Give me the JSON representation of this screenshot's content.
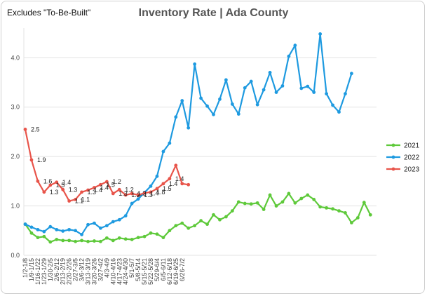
{
  "note": "Excludes \"To-Be-Built\"",
  "chart_data": {
    "type": "line",
    "title": "Inventory Rate | Ada County",
    "xlabel": "",
    "ylabel": "",
    "ylim": [
      0,
      4.6
    ],
    "yticks": [
      "0.0",
      "1.0",
      "2.0",
      "3.0",
      "4.0"
    ],
    "grid": true,
    "legend_position": "right",
    "x_labels": [
      "1/2-1/8",
      "1/9-1/15",
      "1/16-1/22",
      "1/23-1/29",
      "1/30-2/5",
      "2/6-2/12",
      "2/13-2/19",
      "2/20-2/26",
      "2/27-3/5",
      "3/6-3/12",
      "3/13-3/19",
      "3/20-3/26",
      "3/27-4/2",
      "4/3-4/9",
      "4/10-4/16",
      "4/17-4/23",
      "4/24-4/30",
      "5/1-5/7",
      "5/8-5/14",
      "5/15-5/21",
      "5/22-5/28",
      "5/29-6/4",
      "6/5-6/11",
      "6/12-6/18",
      "6/19-6/25",
      "6/26-7/2"
    ],
    "series": [
      {
        "name": "2021",
        "color": "#5ec93a",
        "values": [
          0.63,
          0.45,
          0.36,
          0.38,
          0.27,
          0.32,
          0.3,
          0.3,
          0.28,
          0.3,
          0.28,
          0.29,
          0.28,
          0.35,
          0.3,
          0.35,
          0.33,
          0.32,
          0.36,
          0.38,
          0.45,
          0.43,
          0.36,
          0.5,
          0.6,
          0.65,
          0.55,
          0.6,
          0.7,
          0.63,
          0.82,
          0.72,
          0.78,
          0.9,
          1.08,
          1.05,
          1.04,
          1.06,
          0.93,
          1.22,
          1.0,
          1.08,
          1.25,
          1.06,
          1.15,
          1.22,
          1.13,
          0.98,
          0.96,
          0.94,
          0.9,
          0.86,
          0.66,
          0.76,
          1.07,
          0.82
        ]
      },
      {
        "name": "2022",
        "color": "#1e9ae0",
        "values": [
          0.63,
          0.57,
          0.52,
          0.48,
          0.58,
          0.52,
          0.49,
          0.52,
          0.5,
          0.42,
          0.62,
          0.65,
          0.55,
          0.6,
          0.68,
          0.72,
          0.8,
          1.05,
          1.14,
          1.27,
          1.4,
          1.6,
          2.1,
          2.27,
          2.8,
          3.13,
          2.58,
          3.87,
          3.18,
          3.02,
          2.85,
          3.16,
          3.55,
          3.06,
          2.86,
          3.39,
          3.52,
          3.05,
          3.35,
          3.7,
          3.3,
          3.43,
          4.03,
          4.25,
          3.38,
          3.42,
          3.3,
          4.48,
          3.27,
          3.04,
          2.9,
          3.27,
          3.68
        ]
      },
      {
        "name": "2023",
        "color": "#e8544a",
        "values": [
          2.55,
          1.93,
          1.5,
          1.28,
          1.42,
          1.48,
          1.33,
          1.1,
          1.13,
          1.28,
          1.32,
          1.37,
          1.43,
          1.49,
          1.25,
          1.33,
          1.22,
          1.25,
          1.22,
          1.26,
          1.28,
          1.35,
          1.45,
          1.55,
          1.82,
          1.45,
          1.43
        ]
      }
    ],
    "labels_2023": [
      "2.5",
      "1.9",
      "1.6",
      "1.3",
      "1.5",
      "1.4",
      "1.3",
      "1.1",
      "1.1",
      "1.3",
      "1.4",
      "1.4",
      "1.5",
      "1.2",
      "1.3",
      "1.2",
      "1.2",
      "1.3",
      "1.3",
      "1.4",
      "1.8",
      "1.5",
      "1.4",
      "1.4"
    ]
  }
}
